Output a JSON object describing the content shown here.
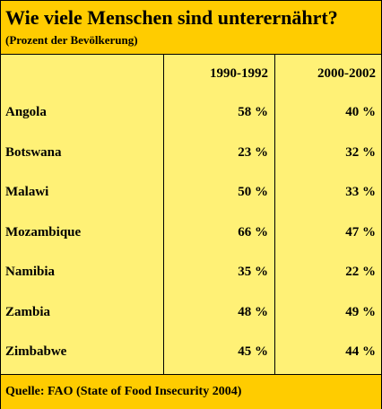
{
  "title": "Wie viele Menschen sind unterernährt?",
  "subtitle": "(Prozent der Bevölkerung)",
  "source": "Quelle: FAO (State of Food Insecurity 2004)",
  "colors": {
    "header_bg": "#ffcc00",
    "table_bg": "#fff176",
    "border": "#000000"
  },
  "chart_data": {
    "type": "table",
    "columns": [
      "1990-1992",
      "2000-2002"
    ],
    "rows": [
      {
        "label": "Angola",
        "values": [
          "58 %",
          "40 %"
        ]
      },
      {
        "label": "Botswana",
        "values": [
          "23 %",
          "32 %"
        ]
      },
      {
        "label": "Malawi",
        "values": [
          "50 %",
          "33 %"
        ]
      },
      {
        "label": "Mozambique",
        "values": [
          "66 %",
          "47 %"
        ]
      },
      {
        "label": "Namibia",
        "values": [
          "35 %",
          "22 %"
        ]
      },
      {
        "label": "Zambia",
        "values": [
          "48 %",
          "49 %"
        ]
      },
      {
        "label": "Zimbabwe",
        "values": [
          "45 %",
          "44 %"
        ]
      }
    ]
  }
}
